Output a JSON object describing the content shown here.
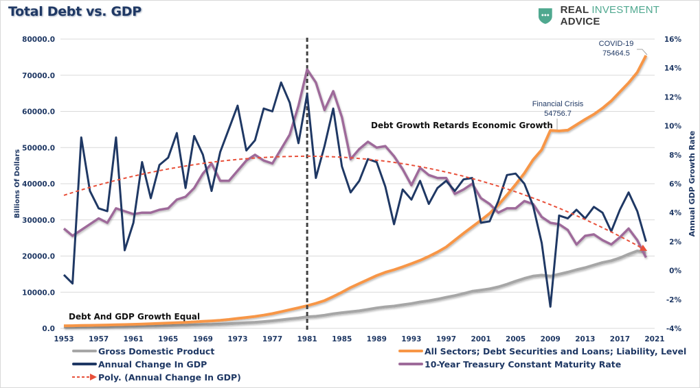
{
  "header": {
    "title": "Total Debt vs. GDP",
    "brand": {
      "word1": "REAL",
      "word2": "INVESTMENT",
      "word3": "ADVICE",
      "icon": "shield-chat-icon",
      "accent": "#4fa88f"
    }
  },
  "chart_data": {
    "type": "line",
    "title": "Total Debt vs. GDP",
    "xlabel": "",
    "ylabel_left": "Billions Of Dollars",
    "ylabel_right": "Annual GDP Growth Rate",
    "ylim_left": [
      0,
      80000
    ],
    "ylim_right": [
      -4,
      16
    ],
    "xlim": [
      1953,
      2021
    ],
    "x_ticks": [
      "1953",
      "1957",
      "1961",
      "1965",
      "1969",
      "1973",
      "1977",
      "1981",
      "1985",
      "1989",
      "1993",
      "1997",
      "2001",
      "2005",
      "2009",
      "2013",
      "2017",
      "2021"
    ],
    "y_ticks_left": [
      "0.0",
      "10000.0",
      "20000.0",
      "30000.0",
      "40000.0",
      "50000.0",
      "60000.0",
      "70000.0",
      "80000.0"
    ],
    "y_ticks_right": [
      "-4%",
      "-2%",
      "0%",
      "2%",
      "4%",
      "6%",
      "8%",
      "10%",
      "12%",
      "14%",
      "16%"
    ],
    "grid": true,
    "legend_position": "bottom",
    "x": [
      1953,
      1954,
      1955,
      1956,
      1957,
      1958,
      1959,
      1960,
      1961,
      1962,
      1963,
      1964,
      1965,
      1966,
      1967,
      1968,
      1969,
      1970,
      1971,
      1972,
      1973,
      1974,
      1975,
      1976,
      1977,
      1978,
      1979,
      1980,
      1981,
      1982,
      1983,
      1984,
      1985,
      1986,
      1987,
      1988,
      1989,
      1990,
      1991,
      1992,
      1993,
      1994,
      1995,
      1996,
      1997,
      1998,
      1999,
      2000,
      2001,
      2002,
      2003,
      2004,
      2005,
      2006,
      2007,
      2008,
      2009,
      2010,
      2011,
      2012,
      2013,
      2014,
      2015,
      2016,
      2017,
      2018,
      2019,
      2020
    ],
    "series": [
      {
        "name": "Gross Domestic Product",
        "axis": "left",
        "color": "#a6a6a6",
        "values": [
          380,
          390,
          425,
          450,
          475,
          480,
          520,
          540,
          560,
          600,
          640,
          690,
          740,
          815,
          860,
          940,
          1020,
          1070,
          1160,
          1280,
          1430,
          1550,
          1690,
          1870,
          2080,
          2350,
          2630,
          2860,
          3210,
          3340,
          3640,
          4040,
          4340,
          4580,
          4860,
          5240,
          5640,
          5960,
          6160,
          6520,
          6860,
          7290,
          7640,
          8070,
          8580,
          9060,
          9630,
          10250,
          10580,
          10940,
          11460,
          12210,
          13040,
          13820,
          14450,
          14710,
          14450,
          14990,
          15540,
          16200,
          16780,
          17520,
          18220,
          18710,
          19480,
          20530,
          21430,
          21060
        ]
      },
      {
        "name": "All Sectors; Debt Securities and Loans; Liability, Level",
        "axis": "left",
        "color": "#f79646",
        "values": [
          700,
          740,
          790,
          840,
          880,
          930,
          990,
          1050,
          1110,
          1190,
          1270,
          1360,
          1460,
          1560,
          1670,
          1800,
          1930,
          2060,
          2240,
          2470,
          2750,
          3020,
          3300,
          3650,
          4080,
          4610,
          5160,
          5680,
          6280,
          6920,
          7670,
          8790,
          10000,
          11300,
          12400,
          13500,
          14600,
          15500,
          16200,
          17000,
          17900,
          18800,
          19900,
          21100,
          22500,
          24400,
          26300,
          28100,
          29900,
          31800,
          34100,
          36900,
          39800,
          42900,
          46600,
          49400,
          54757,
          54600,
          54800,
          56300,
          57800,
          59200,
          60900,
          62900,
          65400,
          67900,
          70800,
          75464
        ]
      },
      {
        "name": "Annual Change In GDP",
        "axis": "right",
        "color": "#1f3864",
        "values": [
          -0.3,
          -0.9,
          9.2,
          5.5,
          4.3,
          4.1,
          9.2,
          1.4,
          3.3,
          7.5,
          5.0,
          7.3,
          7.8,
          9.5,
          5.7,
          9.3,
          8.0,
          5.5,
          8.2,
          9.8,
          11.4,
          8.3,
          9.0,
          11.2,
          11.0,
          13.0,
          11.6,
          8.8,
          12.2,
          6.4,
          8.6,
          11.2,
          7.2,
          5.4,
          6.2,
          7.7,
          7.5,
          5.8,
          3.2,
          5.6,
          4.9,
          6.2,
          4.6,
          5.7,
          6.2,
          5.5,
          6.3,
          6.4,
          3.3,
          3.4,
          4.8,
          6.6,
          6.7,
          6.0,
          4.5,
          1.9,
          -2.5,
          3.8,
          3.6,
          4.2,
          3.6,
          4.4,
          4.0,
          2.7,
          4.2,
          5.4,
          4.1,
          2.0
        ]
      },
      {
        "name": "10-Year Treasury Constant Maturity Rate",
        "axis": "right",
        "color": "#9e6b9a",
        "values": [
          2.9,
          2.4,
          2.8,
          3.2,
          3.6,
          3.3,
          4.3,
          4.1,
          3.9,
          4.0,
          4.0,
          4.2,
          4.3,
          4.9,
          5.1,
          5.7,
          6.7,
          7.4,
          6.2,
          6.2,
          6.9,
          7.6,
          8.0,
          7.6,
          7.4,
          8.4,
          9.4,
          11.4,
          13.9,
          13.0,
          11.1,
          12.4,
          10.6,
          7.7,
          8.4,
          8.9,
          8.5,
          8.6,
          7.9,
          7.0,
          5.9,
          7.1,
          6.6,
          6.4,
          6.4,
          5.3,
          5.6,
          6.0,
          5.0,
          4.6,
          4.0,
          4.3,
          4.3,
          4.8,
          4.6,
          3.7,
          3.3,
          3.2,
          2.8,
          1.8,
          2.4,
          2.5,
          2.1,
          1.8,
          2.3,
          2.9,
          2.1,
          0.9
        ]
      }
    ],
    "trendline": {
      "name": "Poly. (Annual Change In GDP)",
      "color": "#e8503a",
      "style": "dashed",
      "type": "polynomial",
      "start": 5.2,
      "peak": 7.9,
      "peak_x": 1981,
      "end": 1.4
    },
    "reference_line": {
      "x": 1981,
      "style": "dashed",
      "color": "#404040"
    },
    "annotations": [
      {
        "text": "Debt And GDP Growth Equal"
      },
      {
        "text": "Debt Growth Retards Economic Growth"
      },
      {
        "text": "Financial Crisis",
        "value": "54756.7",
        "x": 2009
      },
      {
        "text": "COVID-19",
        "value": "75464.5",
        "x": 2020
      }
    ]
  },
  "legend": {
    "items": [
      {
        "label": "Gross Domestic Product"
      },
      {
        "label": "All Sectors; Debt Securities and Loans; Liability, Level"
      },
      {
        "label": "Annual Change In GDP"
      },
      {
        "label": "10-Year Treasury Constant Maturity Rate"
      },
      {
        "label": "Poly. (Annual Change In GDP)"
      }
    ]
  }
}
